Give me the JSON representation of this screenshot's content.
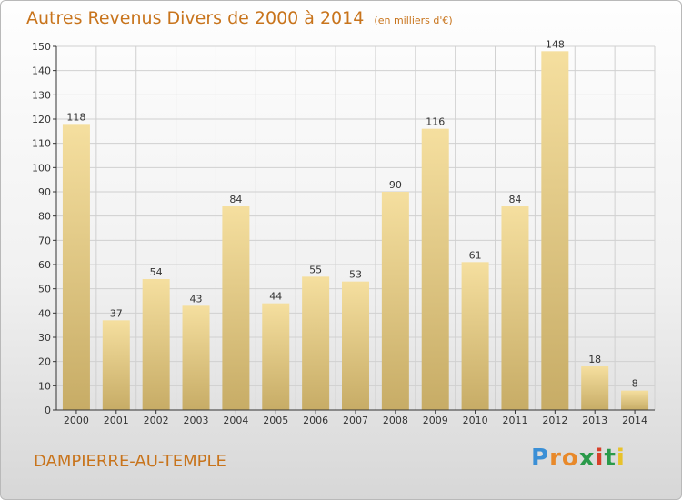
{
  "header": {
    "title": "Autres Revenus Divers de 2000 à 2014",
    "unit": "(en milliers d'€)"
  },
  "footer": {
    "commune": "DAMPIERRE-AU-TEMPLE",
    "logo": {
      "letters": [
        "P",
        "r",
        "o",
        "x",
        "i",
        "t",
        "i"
      ],
      "colors": [
        "#3a8fd6",
        "#e8892a",
        "#e8892a",
        "#2a9a4a",
        "#d8402a",
        "#2a9a4a",
        "#e8c22a"
      ]
    }
  },
  "colors": {
    "title": "#c8741c",
    "bar_top": "#f5df9f",
    "bar_bottom": "#c7ac66",
    "grid": "#d0d0d0",
    "axis": "#333333"
  },
  "chart_data": {
    "type": "bar",
    "categories": [
      "2000",
      "2001",
      "2002",
      "2003",
      "2004",
      "2005",
      "2006",
      "2007",
      "2008",
      "2009",
      "2010",
      "2011",
      "2012",
      "2013",
      "2014"
    ],
    "values": [
      118,
      37,
      54,
      43,
      84,
      44,
      55,
      53,
      90,
      116,
      61,
      84,
      148,
      18,
      8
    ],
    "title": "Autres Revenus Divers de 2000 à 2014",
    "xlabel": "",
    "ylabel": "",
    "ylim": [
      0,
      150
    ],
    "yticks": [
      0,
      10,
      20,
      30,
      40,
      50,
      60,
      70,
      80,
      90,
      100,
      110,
      120,
      130,
      140,
      150
    ],
    "grid": true,
    "data_labels": true
  }
}
